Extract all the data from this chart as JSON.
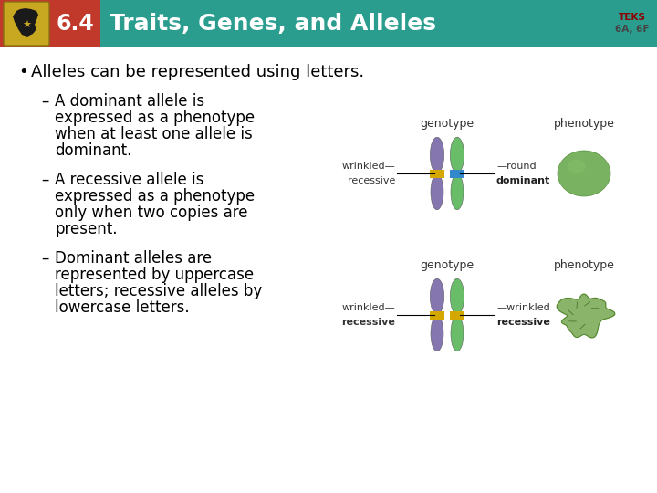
{
  "title_num": "6.4",
  "title_text": "Traits, Genes, and Alleles",
  "teks_label": "TEKS",
  "teks_num": "6A, 6F",
  "header_red": "#c0392b",
  "header_teal": "#2a9d8f",
  "body_bg": "#ffffff",
  "bullet_main": "Alleles can be represented using letters.",
  "sub1_line1": "A dominant allele is",
  "sub1_line2": "expressed as a phenotype",
  "sub1_line3": "when at least one allele is",
  "sub1_line4": "dominant.",
  "sub2_line1": "A recessive allele is",
  "sub2_line2": "expressed as a phenotype",
  "sub2_line3": "only when two copies are",
  "sub2_line4": "present.",
  "sub3_line1": "Dominant alleles are",
  "sub3_line2": "represented by uppercase",
  "sub3_line3": "letters; recessive alleles by",
  "sub3_line4": "lowercase letters.",
  "chr_purple": "#7b6aaa",
  "chr_green": "#5cb85c",
  "band_yellow": "#d4a800",
  "band_blue": "#3388cc",
  "pea_round_color": "#6aaa50",
  "pea_wrinkled_color": "#7aaa55",
  "label_color": "#333333",
  "bold_label_color": "#222222"
}
